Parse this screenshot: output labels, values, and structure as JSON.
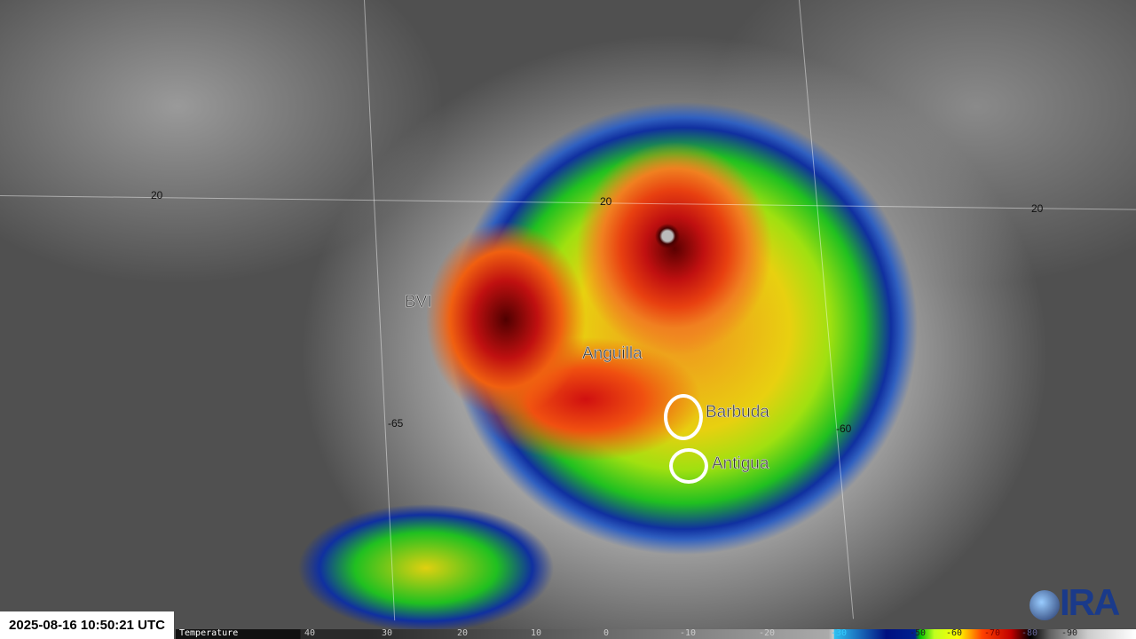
{
  "timestamp": "2025-08-16 10:50:21 UTC",
  "grid_labels": {
    "lat_left": "20",
    "lat_center": "20",
    "lat_right": "20",
    "lon_65": "-65",
    "lon_60": "-60"
  },
  "places": [
    "BVI",
    "Anguilla",
    "Barbuda",
    "Antigua"
  ],
  "colorbar": {
    "title": "Temperature",
    "ticks": [
      "40",
      "30",
      "20",
      "10",
      "0",
      "-10",
      "-20",
      "-30",
      "-50",
      "-60",
      "-70",
      "-80",
      "-90"
    ]
  },
  "logo": {
    "text": "CIRA",
    "icon": "globe-icon"
  },
  "colors": {
    "eye": "#5a0000",
    "coldest": "#c01010",
    "cold": "#e8d010",
    "cool": "#20c020",
    "stamp_bg": "#ffffff"
  }
}
